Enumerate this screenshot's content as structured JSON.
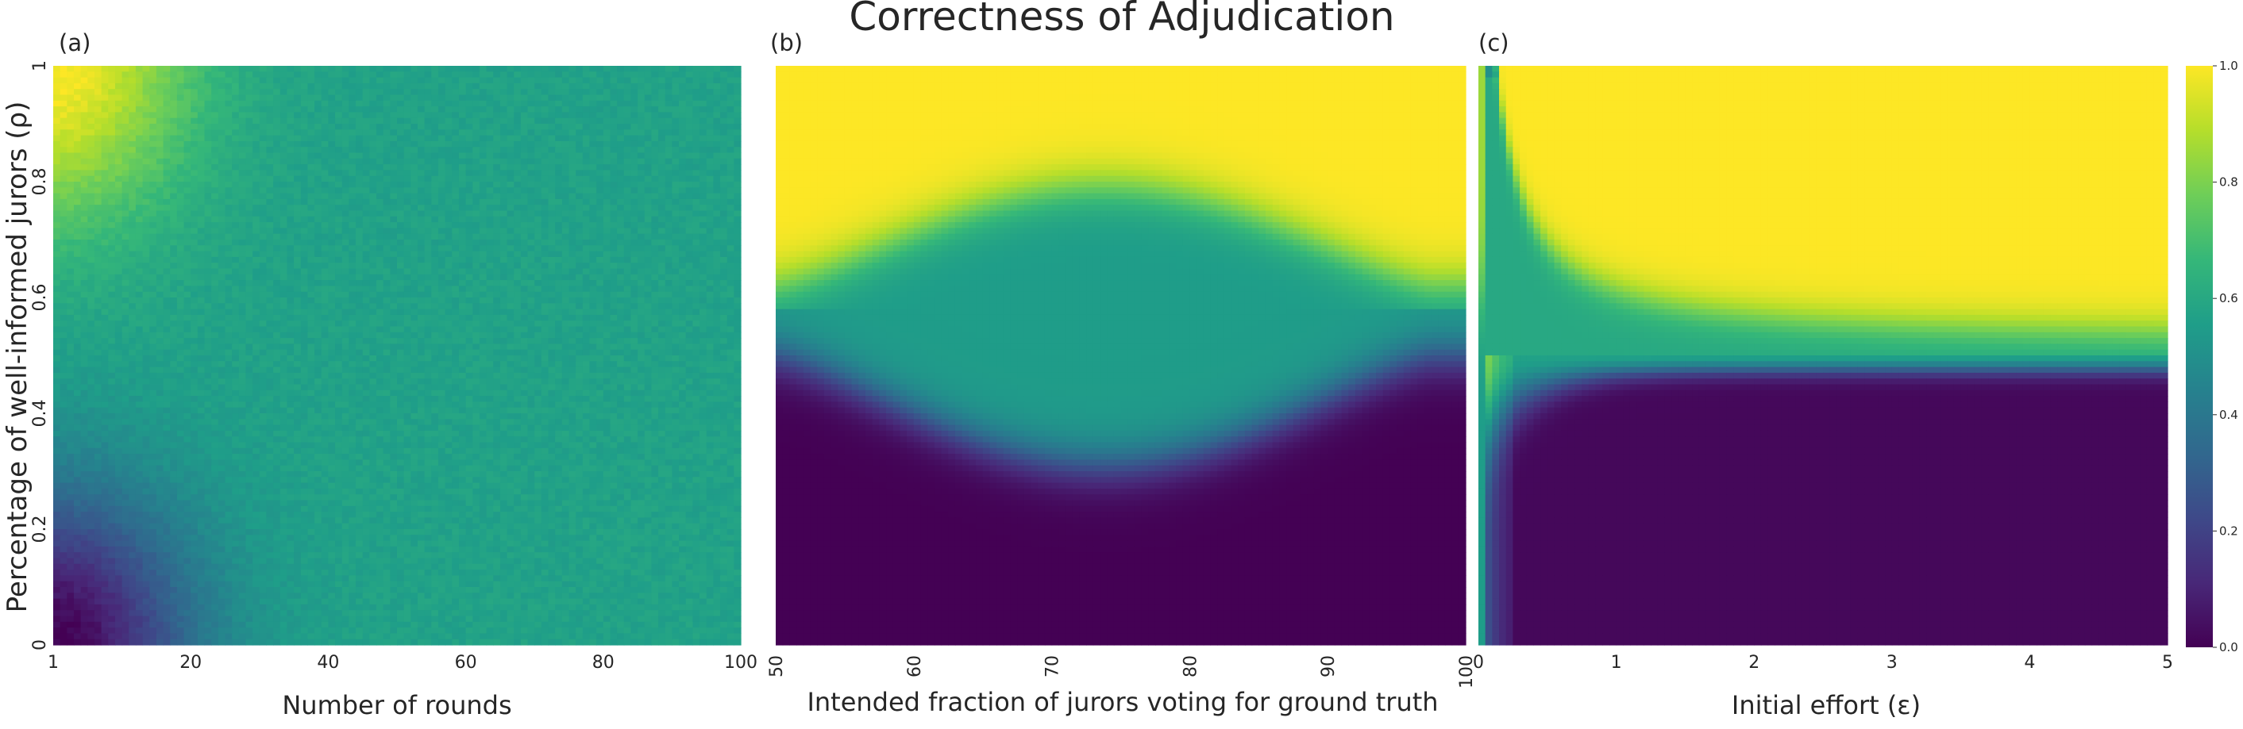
{
  "title": "Correctness of Adjudication",
  "colorscale": [
    "#440154",
    "#482878",
    "#3e4989",
    "#31688e",
    "#26828e",
    "#1f9e89",
    "#35b779",
    "#6ece58",
    "#b5de2b",
    "#fde725"
  ],
  "colorbar": {
    "min": 0.0,
    "max": 1.0,
    "ticks": [
      "0.0",
      "0.2",
      "0.4",
      "0.6",
      "0.8",
      "1.0"
    ]
  },
  "ylabel": "Percentage of well-informed jurors (ρ)",
  "chart_data": [
    {
      "type": "heatmap",
      "panel_label": "(a)",
      "xlabel": "Number of rounds",
      "ylabel": "Percentage of well-informed jurors (ρ)",
      "xlim": [
        1,
        100
      ],
      "ylim": [
        0,
        1
      ],
      "x_ticks": [
        "1",
        "20",
        "40",
        "60",
        "80",
        "100"
      ],
      "y_ticks": [
        "0",
        "0.2",
        "0.4",
        "0.6",
        "0.8",
        "1"
      ],
      "value_range": [
        0,
        1
      ],
      "description_values": {
        "plateau": 0.57,
        "top_left_corner": 1.0,
        "bottom_left_corner": 0.0
      }
    },
    {
      "type": "heatmap",
      "panel_label": "(b)",
      "xlabel": "Intended fraction of jurors voting for ground truth",
      "xlim": [
        50,
        100
      ],
      "ylim": [
        0,
        1
      ],
      "x_ticks": [
        "50",
        "60",
        "70",
        "80",
        "90",
        "100"
      ],
      "value_range": [
        0,
        1
      ],
      "description_values": {
        "upper_region": 1.0,
        "middle_band": 0.55,
        "lower_region": 0.0
      }
    },
    {
      "type": "heatmap",
      "panel_label": "(c)",
      "xlabel": "Initial effort (ε)",
      "xlim": [
        0,
        5
      ],
      "ylim": [
        0,
        1
      ],
      "x_ticks": [
        "0",
        "1",
        "2",
        "3",
        "4",
        "5"
      ],
      "value_range": [
        0,
        1
      ],
      "description_values": {
        "upper_region": 1.0,
        "lower_region": 0.02,
        "boundary_rho": 0.5
      }
    }
  ]
}
